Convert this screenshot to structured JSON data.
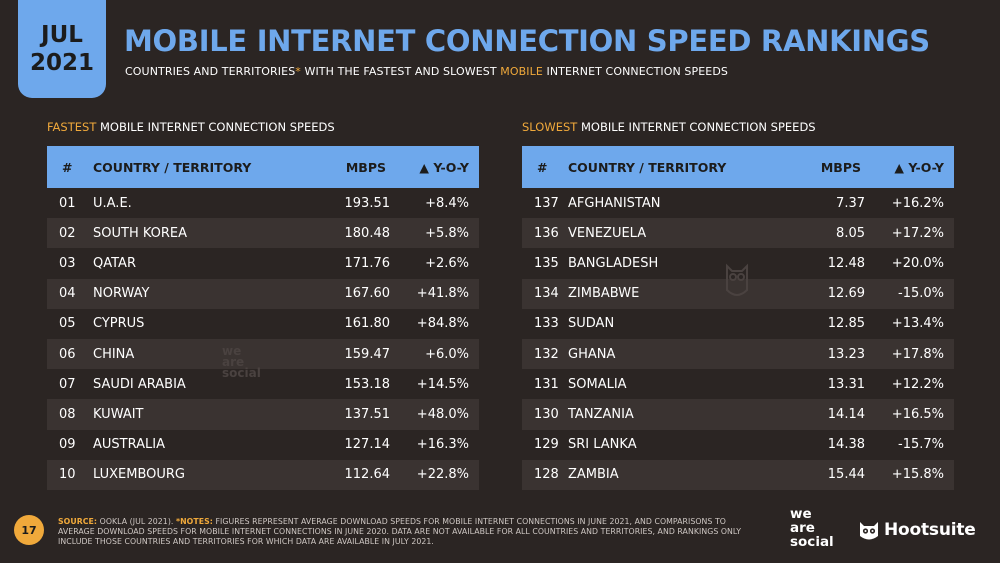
{
  "badge": {
    "month": "JUL",
    "year": "2021"
  },
  "title": "MOBILE INTERNET CONNECTION SPEED RANKINGS",
  "subtitle": {
    "part1": "COUNTRIES AND TERRITORIES",
    "asterisk": "*",
    "part2": " WITH THE FASTEST AND SLOWEST ",
    "highlight": "MOBILE",
    "part3": " INTERNET CONNECTION SPEEDS"
  },
  "fastest": {
    "heading_accent": "FASTEST",
    "heading_rest": " MOBILE INTERNET CONNECTION SPEEDS",
    "columns": [
      "#",
      "COUNTRY / TERRITORY",
      "MBPS",
      "▲ Y-O-Y"
    ],
    "rows": [
      [
        "01",
        "U.A.E.",
        "193.51",
        "+8.4%"
      ],
      [
        "02",
        "SOUTH KOREA",
        "180.48",
        "+5.8%"
      ],
      [
        "03",
        "QATAR",
        "171.76",
        "+2.6%"
      ],
      [
        "04",
        "NORWAY",
        "167.60",
        "+41.8%"
      ],
      [
        "05",
        "CYPRUS",
        "161.80",
        "+84.8%"
      ],
      [
        "06",
        "CHINA",
        "159.47",
        "+6.0%"
      ],
      [
        "07",
        "SAUDI ARABIA",
        "153.18",
        "+14.5%"
      ],
      [
        "08",
        "KUWAIT",
        "137.51",
        "+48.0%"
      ],
      [
        "09",
        "AUSTRALIA",
        "127.14",
        "+16.3%"
      ],
      [
        "10",
        "LUXEMBOURG",
        "112.64",
        "+22.8%"
      ]
    ]
  },
  "slowest": {
    "heading_accent": "SLOWEST",
    "heading_rest": " MOBILE INTERNET CONNECTION SPEEDS",
    "columns": [
      "#",
      "COUNTRY / TERRITORY",
      "MBPS",
      "▲ Y-O-Y"
    ],
    "rows": [
      [
        "137",
        "AFGHANISTAN",
        "7.37",
        "+16.2%"
      ],
      [
        "136",
        "VENEZUELA",
        "8.05",
        "+17.2%"
      ],
      [
        "135",
        "BANGLADESH",
        "12.48",
        "+20.0%"
      ],
      [
        "134",
        "ZIMBABWE",
        "12.69",
        "-15.0%"
      ],
      [
        "133",
        "SUDAN",
        "12.85",
        "+13.4%"
      ],
      [
        "132",
        "GHANA",
        "13.23",
        "+17.8%"
      ],
      [
        "131",
        "SOMALIA",
        "13.31",
        "+12.2%"
      ],
      [
        "130",
        "TANZANIA",
        "14.14",
        "+16.5%"
      ],
      [
        "129",
        "SRI LANKA",
        "14.38",
        "-15.7%"
      ],
      [
        "128",
        "ZAMBIA",
        "15.44",
        "+15.8%"
      ]
    ]
  },
  "watermark": {
    "line1": "we",
    "line2": "are",
    "line3": "social"
  },
  "page_number": "17",
  "source": {
    "label": "SOURCE:",
    "text": " OOKLA (JUL 2021). ",
    "notes_label": "*NOTES:",
    "notes_text": " FIGURES REPRESENT AVERAGE DOWNLOAD SPEEDS FOR MOBILE INTERNET CONNECTIONS IN JUNE 2021, AND COMPARISONS TO AVERAGE DOWNLOAD SPEEDS FOR MOBILE INTERNET CONNECTIONS IN JUNE 2020. DATA ARE NOT AVAILABLE FOR ALL COUNTRIES AND TERRITORIES, AND RANKINGS ONLY INCLUDE THOSE COUNTRIES AND TERRITORIES FOR WHICH DATA ARE AVAILABLE IN JULY 2021."
  },
  "logos": {
    "was_line1": "we",
    "was_line2": "are",
    "was_line3": "social",
    "hootsuite": "Hootsuite",
    "hootsuite_icon": "owl-icon"
  },
  "colors": {
    "accent_blue": "#6ea8ec",
    "accent_orange": "#f0a93b",
    "background": "#2b2523"
  }
}
